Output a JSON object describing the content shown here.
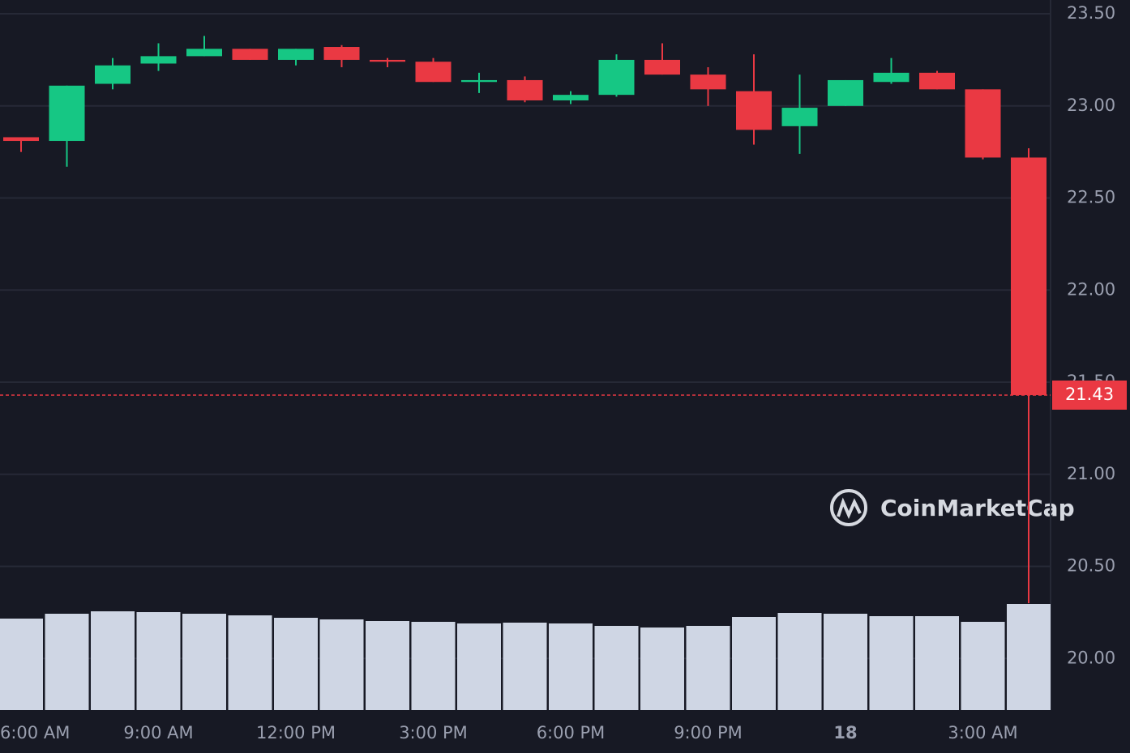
{
  "chart_data": {
    "type": "candlestick",
    "categories": [
      "6:00 AM",
      null,
      null,
      "9:00 AM",
      null,
      null,
      "12:00 PM",
      null,
      null,
      "3:00 PM",
      null,
      null,
      "6:00 PM",
      null,
      null,
      "9:00 PM",
      null,
      null,
      "18",
      null,
      null,
      "3:00 AM",
      null
    ],
    "open": [
      22.83,
      22.81,
      23.12,
      23.23,
      23.27,
      23.31,
      23.25,
      23.32,
      23.25,
      23.24,
      23.13,
      23.14,
      23.03,
      23.06,
      23.25,
      23.17,
      23.08,
      22.89,
      23.0,
      23.13,
      23.18,
      23.09,
      22.72
    ],
    "high": [
      22.83,
      23.11,
      23.26,
      23.34,
      23.38,
      23.31,
      23.31,
      23.33,
      23.26,
      23.26,
      23.18,
      23.16,
      23.08,
      23.28,
      23.34,
      23.21,
      23.28,
      23.17,
      23.14,
      23.26,
      23.19,
      23.09,
      22.77
    ],
    "low": [
      22.75,
      22.67,
      23.09,
      23.19,
      23.27,
      23.25,
      23.22,
      23.21,
      23.21,
      23.13,
      23.07,
      23.02,
      23.01,
      23.05,
      23.17,
      23.0,
      22.79,
      22.74,
      23.0,
      23.12,
      23.09,
      22.71,
      20.3
    ],
    "close": [
      22.81,
      23.11,
      23.22,
      23.27,
      23.31,
      23.25,
      23.31,
      23.25,
      23.24,
      23.13,
      23.14,
      23.03,
      23.06,
      23.25,
      23.17,
      23.09,
      22.87,
      22.99,
      23.14,
      23.18,
      23.09,
      22.72,
      21.43
    ],
    "volume": [
      113,
      119,
      122,
      121,
      119,
      117,
      114,
      112,
      110,
      109,
      107,
      108,
      107,
      104,
      102,
      104,
      115,
      120,
      119,
      116,
      116,
      109,
      131
    ],
    "up_color": "#16c784",
    "down_color": "#ea3943",
    "volume_color": "#cfd6e4",
    "ylim": [
      19.72,
      23.575
    ],
    "yticks": [
      {
        "value": 20,
        "label": "20.00"
      },
      {
        "value": 20.5,
        "label": "20.50"
      },
      {
        "value": 21,
        "label": "21.00"
      },
      {
        "value": 21.5,
        "label": "21.50"
      },
      {
        "value": 22,
        "label": "22.00"
      },
      {
        "value": 22.5,
        "label": "22.50"
      },
      {
        "value": 23,
        "label": "23.00"
      },
      {
        "value": 23.5,
        "label": "23.50"
      }
    ],
    "grid": true,
    "last_price": 21.43,
    "watermark": "CoinMarketCap"
  }
}
